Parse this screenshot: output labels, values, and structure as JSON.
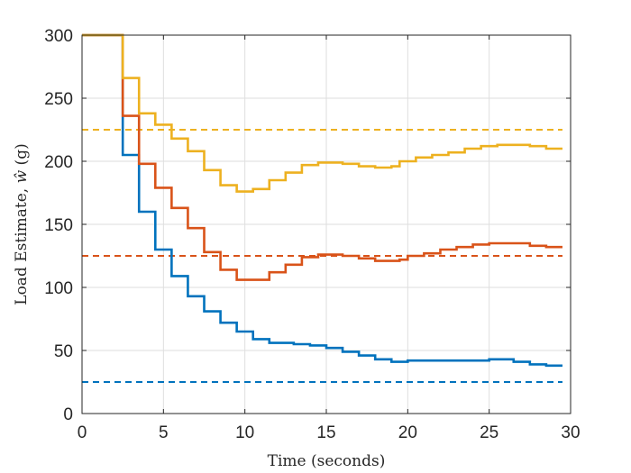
{
  "chart_data": {
    "type": "line",
    "title": "",
    "xlabel": "Time (seconds)",
    "ylabel_prefix": "Load Estimate, ",
    "ylabel_symbol": "ŵ",
    "ylabel_suffix": " (g)",
    "xlim": [
      0,
      30
    ],
    "ylim": [
      0,
      300
    ],
    "xticks": [
      0,
      5,
      10,
      15,
      20,
      25,
      30
    ],
    "yticks": [
      0,
      50,
      100,
      150,
      200,
      250,
      300
    ],
    "grid": true,
    "legend": "none",
    "series": [
      {
        "color": "#0072BD",
        "style": "step",
        "points": [
          [
            0,
            300
          ],
          [
            2.5,
            300
          ],
          [
            2.5,
            205
          ],
          [
            3.5,
            205
          ],
          [
            3.5,
            160
          ],
          [
            4.5,
            160
          ],
          [
            4.5,
            130
          ],
          [
            5.5,
            130
          ],
          [
            5.5,
            109
          ],
          [
            6.5,
            109
          ],
          [
            6.5,
            93
          ],
          [
            7.5,
            93
          ],
          [
            7.5,
            81
          ],
          [
            8.5,
            81
          ],
          [
            8.5,
            72
          ],
          [
            9.5,
            72
          ],
          [
            9.5,
            65
          ],
          [
            10.5,
            65
          ],
          [
            10.5,
            59
          ],
          [
            11.5,
            59
          ],
          [
            11.5,
            56
          ],
          [
            13,
            56
          ],
          [
            13,
            55
          ],
          [
            14,
            55
          ],
          [
            14,
            54
          ],
          [
            15,
            54
          ],
          [
            15,
            52
          ],
          [
            16,
            52
          ],
          [
            16,
            49
          ],
          [
            17,
            49
          ],
          [
            17,
            46
          ],
          [
            18,
            46
          ],
          [
            18,
            43
          ],
          [
            19,
            43
          ],
          [
            19,
            41
          ],
          [
            20,
            41
          ],
          [
            20,
            42
          ],
          [
            22,
            42
          ],
          [
            22,
            42
          ],
          [
            25,
            42
          ],
          [
            25,
            43
          ],
          [
            26.5,
            43
          ],
          [
            26.5,
            41
          ],
          [
            27.5,
            41
          ],
          [
            27.5,
            39
          ],
          [
            28.5,
            39
          ],
          [
            28.5,
            38
          ],
          [
            29.5,
            38
          ]
        ]
      },
      {
        "color": "#D95319",
        "style": "step",
        "points": [
          [
            0,
            300
          ],
          [
            2.5,
            300
          ],
          [
            2.5,
            236
          ],
          [
            3.5,
            236
          ],
          [
            3.5,
            198
          ],
          [
            4.5,
            198
          ],
          [
            4.5,
            179
          ],
          [
            5.5,
            179
          ],
          [
            5.5,
            163
          ],
          [
            6.5,
            163
          ],
          [
            6.5,
            147
          ],
          [
            7.5,
            147
          ],
          [
            7.5,
            128
          ],
          [
            8.5,
            128
          ],
          [
            8.5,
            114
          ],
          [
            9.5,
            114
          ],
          [
            9.5,
            106
          ],
          [
            11.5,
            106
          ],
          [
            11.5,
            112
          ],
          [
            12.5,
            112
          ],
          [
            12.5,
            118
          ],
          [
            13.5,
            118
          ],
          [
            13.5,
            124
          ],
          [
            14.5,
            124
          ],
          [
            14.5,
            126
          ],
          [
            16,
            126
          ],
          [
            16,
            125
          ],
          [
            17,
            125
          ],
          [
            17,
            123
          ],
          [
            18,
            123
          ],
          [
            18,
            121
          ],
          [
            19.5,
            121
          ],
          [
            19.5,
            122
          ],
          [
            20,
            122
          ],
          [
            20,
            125
          ],
          [
            21,
            125
          ],
          [
            21,
            127
          ],
          [
            22,
            127
          ],
          [
            22,
            130
          ],
          [
            23,
            130
          ],
          [
            23,
            132
          ],
          [
            24,
            132
          ],
          [
            24,
            134
          ],
          [
            25,
            134
          ],
          [
            25,
            135
          ],
          [
            27.5,
            135
          ],
          [
            27.5,
            133
          ],
          [
            28.5,
            133
          ],
          [
            28.5,
            132
          ],
          [
            29.5,
            132
          ]
        ]
      },
      {
        "color": "#EDB120",
        "style": "step",
        "points": [
          [
            0,
            300
          ],
          [
            2.5,
            300
          ],
          [
            2.5,
            266
          ],
          [
            3.5,
            266
          ],
          [
            3.5,
            238
          ],
          [
            4.5,
            238
          ],
          [
            4.5,
            229
          ],
          [
            5.5,
            229
          ],
          [
            5.5,
            218
          ],
          [
            6.5,
            218
          ],
          [
            6.5,
            208
          ],
          [
            7.5,
            208
          ],
          [
            7.5,
            193
          ],
          [
            8.5,
            193
          ],
          [
            8.5,
            181
          ],
          [
            9.5,
            181
          ],
          [
            9.5,
            176
          ],
          [
            10.5,
            176
          ],
          [
            10.5,
            178
          ],
          [
            11.5,
            178
          ],
          [
            11.5,
            185
          ],
          [
            12.5,
            185
          ],
          [
            12.5,
            191
          ],
          [
            13.5,
            191
          ],
          [
            13.5,
            197
          ],
          [
            14.5,
            197
          ],
          [
            14.5,
            199
          ],
          [
            16,
            199
          ],
          [
            16,
            198
          ],
          [
            17,
            198
          ],
          [
            17,
            196
          ],
          [
            18,
            196
          ],
          [
            18,
            195
          ],
          [
            19,
            195
          ],
          [
            19,
            196
          ],
          [
            19.5,
            196
          ],
          [
            19.5,
            200
          ],
          [
            20.5,
            200
          ],
          [
            20.5,
            203
          ],
          [
            21.5,
            203
          ],
          [
            21.5,
            205
          ],
          [
            22.5,
            205
          ],
          [
            22.5,
            207
          ],
          [
            23.5,
            207
          ],
          [
            23.5,
            210
          ],
          [
            24.5,
            210
          ],
          [
            24.5,
            212
          ],
          [
            25.5,
            212
          ],
          [
            25.5,
            213
          ],
          [
            26.5,
            213
          ],
          [
            26.5,
            213
          ],
          [
            27.5,
            213
          ],
          [
            27.5,
            212
          ],
          [
            28.5,
            212
          ],
          [
            28.5,
            210
          ],
          [
            29.5,
            210
          ]
        ]
      }
    ],
    "reference_lines": [
      {
        "color": "#0072BD",
        "y": 25,
        "style": "dashed"
      },
      {
        "color": "#D95319",
        "y": 125,
        "style": "dashed"
      },
      {
        "color": "#EDB120",
        "y": 225,
        "style": "dashed"
      }
    ]
  }
}
